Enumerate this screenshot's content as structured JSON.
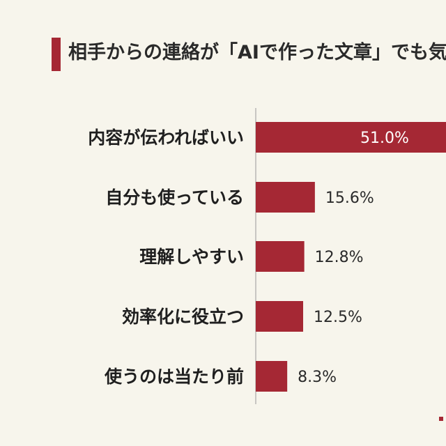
{
  "title": "相手からの連絡が「AIで作った文章」でも気",
  "colors": {
    "bar": "#a52834",
    "label_inside": "#ffffff",
    "label_outside": "#2a2a2a",
    "text": "#1f1f1f"
  },
  "chart_data": {
    "type": "bar",
    "orientation": "horizontal",
    "categories": [
      "内容が伝わればいい",
      "自分も使っている",
      "理解しやすい",
      "効率化に役立つ",
      "使うのは当たり前"
    ],
    "values": [
      51.0,
      15.6,
      12.8,
      12.5,
      8.3
    ],
    "value_labels": [
      "51.0%",
      "15.6%",
      "12.8%",
      "12.5%",
      "8.3%"
    ],
    "title": "相手からの連絡が「AIで作った文章」でも気",
    "xlabel": "",
    "ylabel": "",
    "xlim": [
      0,
      100
    ],
    "grid": false,
    "legend": "none"
  }
}
